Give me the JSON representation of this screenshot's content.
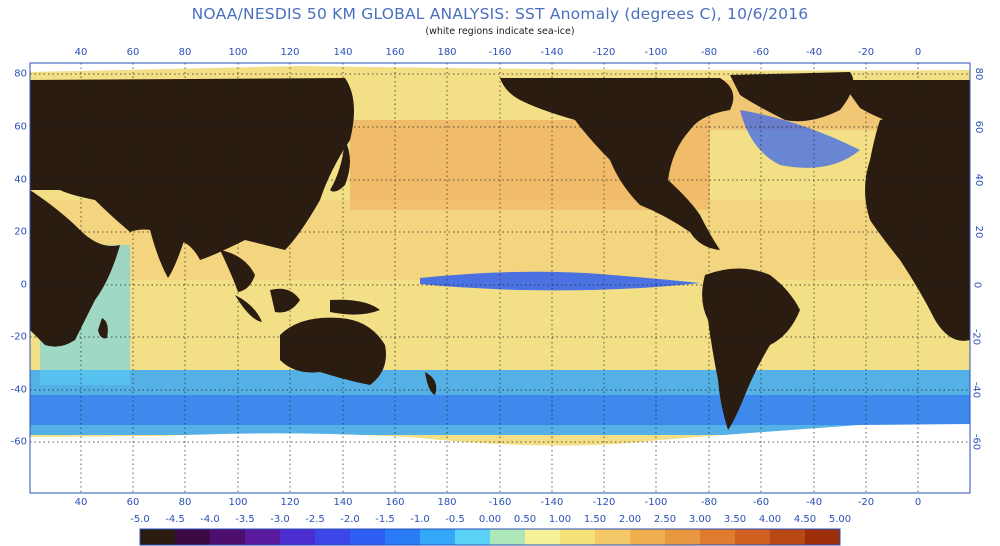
{
  "header": {
    "title": "NOAA/NESDIS 50 KM GLOBAL ANALYSIS: SST Anomaly (degrees C), 10/6/2016",
    "subtitle": "(white regions indicate sea-ice)"
  },
  "axes": {
    "lon_labels": [
      "40",
      "60",
      "80",
      "100",
      "120",
      "140",
      "160",
      "180",
      "-160",
      "-140",
      "-120",
      "-100",
      "-80",
      "-60",
      "-40",
      "-20",
      "0"
    ],
    "lat_labels": [
      "80",
      "60",
      "40",
      "20",
      "0",
      "-20",
      "-40",
      "-60"
    ]
  },
  "colorbar": {
    "labels": [
      "-5.0",
      "-4.5",
      "-4.0",
      "-3.5",
      "-3.0",
      "-2.5",
      "-2.0",
      "-1.5",
      "-1.0",
      "-0.5",
      "0.00",
      "0.50",
      "1.00",
      "1.50",
      "2.00",
      "2.50",
      "3.00",
      "3.50",
      "4.00",
      "4.50",
      "5.00"
    ],
    "colors": [
      "#2a1c10",
      "#3b0a45",
      "#4e0e6e",
      "#5a1aa0",
      "#4a2ccf",
      "#3a47e6",
      "#2d5ff2",
      "#2a7cf6",
      "#34a8f8",
      "#5ad2f8",
      "#aee8b8",
      "#f6f29a",
      "#f6e078",
      "#f4c868",
      "#f0b050",
      "#ea9840",
      "#e07c30",
      "#d06020",
      "#b84814",
      "#9c2e0a"
    ]
  },
  "legend_colors": {
    "land": "#2a1c10",
    "sea_ice": "#ffffff",
    "ocean_neutral": "#f3df86"
  }
}
